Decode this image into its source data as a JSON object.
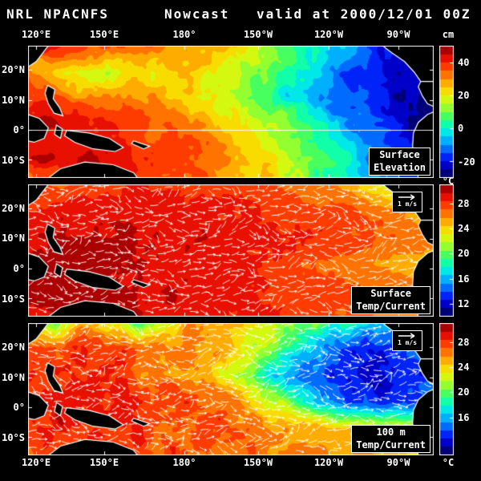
{
  "header": {
    "left": "NRL NPACNFS",
    "center": "Nowcast",
    "right": "valid at 2000/12/01 00Z"
  },
  "axes": {
    "lon_labels": [
      "120°E",
      "150°E",
      "180°",
      "150°W",
      "120°W",
      "90°W"
    ],
    "lon_fracs": [
      0.0198,
      0.1878,
      0.3854,
      0.5672,
      0.7411,
      0.913
    ],
    "lat_labels": [
      "20°N",
      "10°N",
      "0°",
      "10°S"
    ],
    "lat_fracs": [
      0.1818,
      0.4091,
      0.6364,
      0.8636
    ]
  },
  "vector_legend": {
    "label": "1 m/s"
  },
  "colormap": [
    "#000050",
    "#0000a0",
    "#0000f0",
    "#0048ff",
    "#0090ff",
    "#00d0ff",
    "#00ffd0",
    "#20ff80",
    "#70ff40",
    "#b8ff20",
    "#f0f000",
    "#ffc800",
    "#ff9000",
    "#ff5800",
    "#ff2000",
    "#d00000",
    "#880000"
  ],
  "colors": {
    "background": "#000000",
    "text": "#ffffff",
    "coast": "#ffffff",
    "land": "#000000"
  },
  "chart_data": [
    {
      "type": "heatmap",
      "title": "Surface Elevation",
      "label_lines": [
        "Surface",
        "Elevation"
      ],
      "unit": "cm",
      "vmin": -30,
      "vmax": 50,
      "lat_range": [
        28,
        -16
      ],
      "lon_range": [
        "117E",
        "77W"
      ],
      "colorbar_ticks": [
        40,
        20,
        0,
        -20
      ],
      "colorbar_tick_labels": [
        "40",
        "20",
        "0",
        "-20"
      ],
      "vectors": false,
      "equator_line": true,
      "noise_amp": 5,
      "seed": 11,
      "grid": [
        [
          38,
          44,
          40,
          34,
          32,
          30,
          28,
          24,
          20,
          14,
          6,
          -2,
          -10,
          -16,
          -20,
          -24
        ],
        [
          30,
          22,
          18,
          16,
          20,
          24,
          24,
          20,
          14,
          6,
          -2,
          -10,
          -16,
          -20,
          -24,
          -26
        ],
        [
          40,
          36,
          32,
          30,
          28,
          26,
          22,
          18,
          12,
          4,
          -4,
          -10,
          -16,
          -20,
          -24,
          -28
        ],
        [
          46,
          44,
          42,
          40,
          38,
          34,
          30,
          26,
          22,
          16,
          8,
          0,
          -8,
          -16,
          -22,
          -26
        ],
        [
          42,
          44,
          44,
          42,
          40,
          38,
          34,
          30,
          26,
          20,
          12,
          4,
          -4,
          -12,
          -20,
          -26
        ],
        [
          36,
          40,
          42,
          44,
          42,
          38,
          36,
          32,
          28,
          22,
          14,
          6,
          -2,
          -10,
          -18,
          -24
        ]
      ]
    },
    {
      "type": "heatmap",
      "title": "Surface Temp/Current",
      "label_lines": [
        "Surface",
        "Temp/Current"
      ],
      "unit": "°C",
      "vmin": 10,
      "vmax": 31,
      "lat_range": [
        28,
        -16
      ],
      "lon_range": [
        "117E",
        "77W"
      ],
      "colorbar_ticks": [
        28,
        24,
        20,
        16,
        12
      ],
      "colorbar_tick_labels": [
        "28",
        "24",
        "20",
        "16",
        "12"
      ],
      "vectors": true,
      "equator_line": false,
      "noise_amp": 0.6,
      "seed": 23,
      "grid": [
        [
          26,
          27,
          27.5,
          28,
          28.2,
          28.4,
          28.2,
          28,
          27.6,
          27.2,
          26.6,
          26,
          25,
          23,
          20.5,
          18.5
        ],
        [
          28.5,
          29,
          29.2,
          29.4,
          29.4,
          29.2,
          29,
          28.8,
          28.6,
          28.4,
          28,
          27.6,
          27.2,
          26.6,
          25.6,
          24.5
        ],
        [
          29.5,
          29.8,
          30,
          30,
          29.8,
          29.6,
          29.4,
          29.2,
          29,
          28.8,
          28.4,
          28,
          27.6,
          27.2,
          26.8,
          26.2
        ],
        [
          30,
          30.2,
          30.2,
          30,
          29.8,
          29.6,
          29.4,
          29,
          28.6,
          28,
          27.4,
          26.8,
          26.2,
          25.6,
          25,
          24.2
        ],
        [
          30,
          30.2,
          30,
          30,
          29.8,
          29.6,
          29.4,
          29,
          28.8,
          28.4,
          28,
          27.6,
          27.2,
          26.8,
          26.2,
          25.6
        ],
        [
          29.4,
          29.6,
          29.6,
          29.4,
          29.4,
          29.2,
          29,
          28.8,
          28.6,
          28.4,
          28,
          27.8,
          27.4,
          27,
          26.6,
          26
        ]
      ]
    },
    {
      "type": "heatmap",
      "title": "100 m Temp/Current",
      "label_lines": [
        "100 m",
        "Temp/Current"
      ],
      "unit": "°C",
      "vmin": 10,
      "vmax": 31,
      "lat_range": [
        28,
        -16
      ],
      "lon_range": [
        "117E",
        "77W"
      ],
      "colorbar_ticks": [
        28,
        24,
        20,
        16
      ],
      "colorbar_tick_labels": [
        "28",
        "24",
        "20",
        "16"
      ],
      "vectors": true,
      "equator_line": false,
      "noise_amp": 1.4,
      "seed": 37,
      "grid": [
        [
          24,
          21,
          26,
          24,
          20,
          23,
          26,
          25,
          24,
          22.5,
          21,
          19.5,
          18,
          16.5,
          15,
          14
        ],
        [
          27,
          28,
          28,
          27.5,
          27,
          26.5,
          26,
          25,
          23.5,
          21.5,
          18,
          15,
          13.5,
          13,
          13.5,
          14
        ],
        [
          28,
          28.5,
          28,
          27.5,
          27,
          26.5,
          25.5,
          24,
          21,
          17,
          14.5,
          13,
          12.5,
          12,
          12.5,
          13.5
        ],
        [
          28.5,
          29,
          29,
          28.5,
          28.5,
          28,
          27.5,
          27,
          25.5,
          23,
          19,
          15.5,
          13.5,
          13,
          13.5,
          15
        ],
        [
          28,
          28.5,
          28.5,
          28,
          28,
          27.5,
          27.5,
          27,
          26.5,
          26,
          25.5,
          25,
          24.5,
          24,
          23.5,
          22
        ],
        [
          27.5,
          28,
          28,
          28,
          27.5,
          27.5,
          27,
          27,
          27,
          26.5,
          26.5,
          26,
          25.5,
          25,
          24.5,
          23.5
        ]
      ]
    }
  ],
  "land": {
    "fill": "#000000",
    "coast": "#ffffff",
    "polygons": {
      "asia_corner": [
        [
          0,
          0
        ],
        [
          0.05,
          0
        ],
        [
          0.035,
          0.06
        ],
        [
          0.02,
          0.12
        ],
        [
          0,
          0.16
        ]
      ],
      "philippines": [
        [
          0.048,
          0.3
        ],
        [
          0.066,
          0.33
        ],
        [
          0.062,
          0.4
        ],
        [
          0.078,
          0.47
        ],
        [
          0.086,
          0.53
        ],
        [
          0.064,
          0.51
        ],
        [
          0.05,
          0.44
        ],
        [
          0.042,
          0.36
        ]
      ],
      "borneo": [
        [
          0,
          0.52
        ],
        [
          0.028,
          0.55
        ],
        [
          0.05,
          0.62
        ],
        [
          0.04,
          0.7
        ],
        [
          0.015,
          0.73
        ],
        [
          0,
          0.72
        ]
      ],
      "sulawesi": [
        [
          0.07,
          0.6
        ],
        [
          0.085,
          0.63
        ],
        [
          0.08,
          0.7
        ],
        [
          0.065,
          0.67
        ]
      ],
      "new_guinea": [
        [
          0.095,
          0.64
        ],
        [
          0.15,
          0.66
        ],
        [
          0.2,
          0.7
        ],
        [
          0.235,
          0.77
        ],
        [
          0.215,
          0.8
        ],
        [
          0.16,
          0.78
        ],
        [
          0.115,
          0.73
        ],
        [
          0.09,
          0.68
        ]
      ],
      "australia": [
        [
          0.05,
          1
        ],
        [
          0.08,
          0.93
        ],
        [
          0.14,
          0.88
        ],
        [
          0.21,
          0.9
        ],
        [
          0.26,
          0.96
        ],
        [
          0.27,
          1
        ]
      ],
      "solomons": [
        [
          0.26,
          0.72
        ],
        [
          0.3,
          0.76
        ],
        [
          0.285,
          0.78
        ],
        [
          0.255,
          0.74
        ]
      ],
      "north_america": [
        [
          0.875,
          0
        ],
        [
          1,
          0
        ],
        [
          1,
          0.27
        ],
        [
          0.968,
          0.27
        ],
        [
          0.952,
          0.2
        ],
        [
          0.928,
          0.12
        ],
        [
          0.9,
          0.06
        ],
        [
          0.882,
          0.02
        ]
      ],
      "central_america": [
        [
          0.968,
          0.27
        ],
        [
          1,
          0.27
        ],
        [
          1,
          0.46
        ],
        [
          0.985,
          0.44
        ],
        [
          0.972,
          0.38
        ],
        [
          0.962,
          0.31
        ]
      ],
      "south_america": [
        [
          1,
          0.5
        ],
        [
          0.985,
          0.52
        ],
        [
          0.962,
          0.58
        ],
        [
          0.95,
          0.66
        ],
        [
          0.948,
          0.76
        ],
        [
          0.956,
          0.88
        ],
        [
          0.962,
          1
        ],
        [
          1,
          1
        ]
      ]
    }
  }
}
